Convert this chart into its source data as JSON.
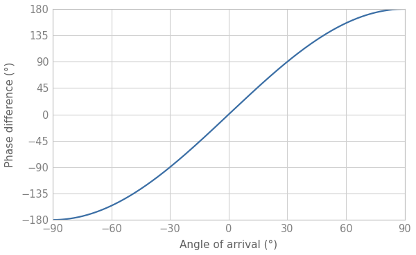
{
  "xlabel": "Angle of arrival (°)",
  "ylabel": "Phase difference (°)",
  "line_color": "#3A6EA5",
  "line_width": 1.6,
  "xlim": [
    -90,
    90
  ],
  "ylim": [
    -180,
    180
  ],
  "xticks": [
    -90,
    -60,
    -30,
    0,
    30,
    60,
    90
  ],
  "yticks": [
    -180,
    -135,
    -90,
    -45,
    0,
    45,
    90,
    135,
    180
  ],
  "grid_color": "#D0D0D0",
  "plot_bg_color": "#FFFFFF",
  "fig_bg_color": "#FFFFFF",
  "tick_color": "#808080",
  "label_color": "#606060",
  "spine_color": "#C0C0C0",
  "xlabel_fontsize": 11,
  "ylabel_fontsize": 11,
  "tick_fontsize": 10.5
}
